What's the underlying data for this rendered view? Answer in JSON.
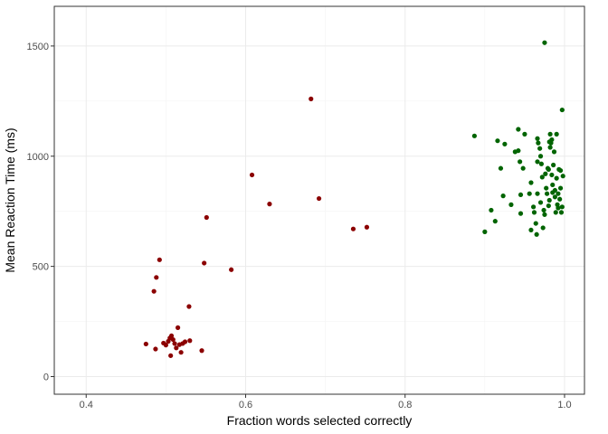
{
  "chart_data": {
    "type": "scatter",
    "title": "",
    "xlabel": "Fraction words selected correctly",
    "ylabel": "Mean Reaction Time (ms)",
    "xlim": [
      0.36,
      1.025
    ],
    "ylim": [
      -80,
      1680
    ],
    "x_ticks": [
      0.4,
      0.6,
      0.8,
      1.0
    ],
    "x_tick_labels": [
      "0.4",
      "0.6",
      "0.8",
      "1.0"
    ],
    "y_ticks": [
      0,
      500,
      1000,
      1500
    ],
    "y_tick_labels": [
      "0",
      "500",
      "1000",
      "1500"
    ],
    "grid": true,
    "legend": "none",
    "series": [
      {
        "color": "#8b0000",
        "points": [
          [
            0.475,
            148
          ],
          [
            0.487,
            125
          ],
          [
            0.497,
            152
          ],
          [
            0.5,
            143
          ],
          [
            0.503,
            160
          ],
          [
            0.505,
            175
          ],
          [
            0.507,
            185
          ],
          [
            0.509,
            168
          ],
          [
            0.511,
            150
          ],
          [
            0.513,
            130
          ],
          [
            0.517,
            145
          ],
          [
            0.519,
            110
          ],
          [
            0.521,
            150
          ],
          [
            0.524,
            158
          ],
          [
            0.53,
            163
          ],
          [
            0.545,
            118
          ],
          [
            0.506,
            95
          ],
          [
            0.515,
            222
          ],
          [
            0.529,
            318
          ],
          [
            0.485,
            387
          ],
          [
            0.488,
            450
          ],
          [
            0.492,
            530
          ],
          [
            0.548,
            515
          ],
          [
            0.551,
            722
          ],
          [
            0.582,
            485
          ],
          [
            0.608,
            915
          ],
          [
            0.63,
            783
          ],
          [
            0.682,
            1260
          ],
          [
            0.692,
            808
          ],
          [
            0.735,
            670
          ],
          [
            0.752,
            678
          ]
        ]
      },
      {
        "color": "#006400",
        "points": [
          [
            0.887,
            1092
          ],
          [
            0.9,
            657
          ],
          [
            0.908,
            755
          ],
          [
            0.913,
            705
          ],
          [
            0.916,
            1070
          ],
          [
            0.92,
            945
          ],
          [
            0.923,
            820
          ],
          [
            0.925,
            1055
          ],
          [
            0.933,
            780
          ],
          [
            0.938,
            1020
          ],
          [
            0.942,
            1025
          ],
          [
            0.942,
            1122
          ],
          [
            0.944,
            975
          ],
          [
            0.945,
            825
          ],
          [
            0.945,
            740
          ],
          [
            0.948,
            945
          ],
          [
            0.95,
            1100
          ],
          [
            0.956,
            830
          ],
          [
            0.958,
            665
          ],
          [
            0.961,
            770
          ],
          [
            0.962,
            745
          ],
          [
            0.964,
            695
          ],
          [
            0.965,
            645
          ],
          [
            0.966,
            830
          ],
          [
            0.966,
            1080
          ],
          [
            0.967,
            1060
          ],
          [
            0.969,
            1035
          ],
          [
            0.97,
            1000
          ],
          [
            0.971,
            965
          ],
          [
            0.972,
            905
          ],
          [
            0.973,
            675
          ],
          [
            0.974,
            755
          ],
          [
            0.975,
            735
          ],
          [
            0.975,
            1515
          ],
          [
            0.976,
            920
          ],
          [
            0.977,
            855
          ],
          [
            0.978,
            830
          ],
          [
            0.979,
            945
          ],
          [
            0.98,
            775
          ],
          [
            0.981,
            800
          ],
          [
            0.982,
            1100
          ],
          [
            0.982,
            1040
          ],
          [
            0.983,
            1060
          ],
          [
            0.984,
            1075
          ],
          [
            0.984,
            915
          ],
          [
            0.985,
            870
          ],
          [
            0.986,
            960
          ],
          [
            0.987,
            1020
          ],
          [
            0.988,
            845
          ],
          [
            0.988,
            815
          ],
          [
            0.989,
            745
          ],
          [
            0.99,
            1100
          ],
          [
            0.991,
            780
          ],
          [
            0.992,
            765
          ],
          [
            0.992,
            830
          ],
          [
            0.993,
            940
          ],
          [
            0.994,
            805
          ],
          [
            0.995,
            935
          ],
          [
            0.996,
            745
          ],
          [
            0.997,
            1210
          ],
          [
            0.997,
            770
          ],
          [
            0.998,
            910
          ],
          [
            0.958,
            880
          ],
          [
            0.966,
            975
          ],
          [
            0.97,
            790
          ],
          [
            0.98,
            940
          ],
          [
            0.985,
            835
          ],
          [
            0.99,
            900
          ],
          [
            0.995,
            855
          ],
          [
            0.981,
            1065
          ]
        ]
      }
    ]
  }
}
